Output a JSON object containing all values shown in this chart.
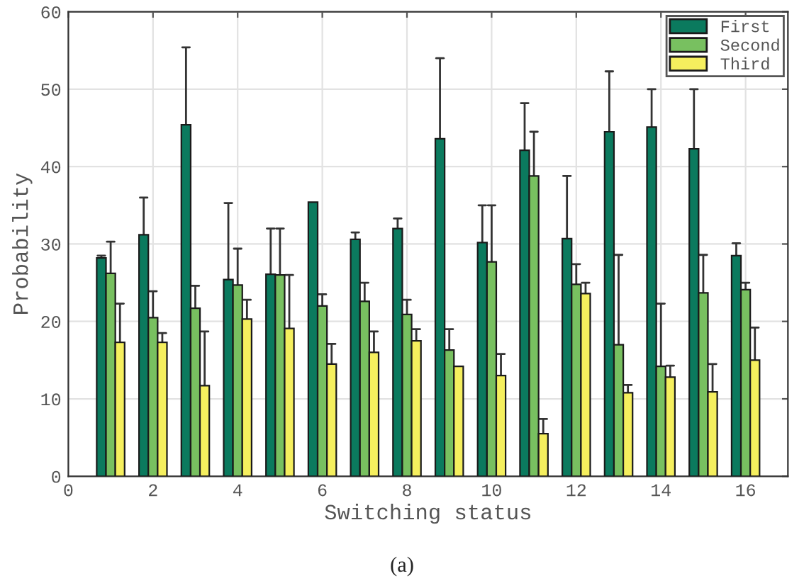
{
  "chart_data": {
    "type": "bar",
    "xlabel": "Switching status",
    "ylabel": "Probability",
    "annotations": [
      "(a)"
    ],
    "x": [
      1,
      2,
      3,
      4,
      5,
      6,
      7,
      8,
      9,
      10,
      11,
      12,
      13,
      14,
      15,
      16
    ],
    "xlim": [
      0,
      17
    ],
    "xticks": [
      0,
      2,
      4,
      6,
      8,
      10,
      12,
      14,
      16
    ],
    "ylim": [
      0,
      60
    ],
    "yticks": [
      0,
      10,
      20,
      30,
      40,
      50,
      60
    ],
    "grid": true,
    "legend": "top right",
    "series": [
      {
        "name": "First",
        "color": "#0b7a5e",
        "values": [
          28.2,
          31.2,
          45.4,
          25.4,
          26.1,
          35.4,
          30.6,
          32,
          43.6,
          30.2,
          42.1,
          30.7,
          44.5,
          45.1,
          42.3,
          28.5
        ],
        "errors": [
          [
            28.2,
            28.5
          ],
          [
            31.2,
            36
          ],
          [
            45.4,
            55.4
          ],
          [
            25.4,
            35.3
          ],
          [
            26.1,
            32
          ],
          null,
          [
            30.6,
            31.5
          ],
          [
            32,
            33.3
          ],
          [
            43.6,
            54
          ],
          [
            30.2,
            35
          ],
          [
            42.1,
            48.2
          ],
          [
            30.7,
            38.8
          ],
          [
            44.5,
            52.3
          ],
          [
            45.1,
            50
          ],
          [
            42.3,
            50
          ],
          [
            28.5,
            30.1
          ]
        ]
      },
      {
        "name": "Second",
        "color": "#78c060",
        "values": [
          26.2,
          20.5,
          21.7,
          24.7,
          26,
          22,
          22.6,
          20.9,
          16.3,
          27.7,
          38.8,
          24.8,
          17,
          14.2,
          23.7,
          24.1
        ],
        "errors": [
          [
            26.2,
            30.3
          ],
          [
            20.5,
            23.9
          ],
          [
            21.7,
            24.6
          ],
          [
            24.7,
            29.4
          ],
          [
            26,
            32
          ],
          [
            22,
            23.5
          ],
          [
            22.6,
            25
          ],
          [
            20.9,
            22.8
          ],
          [
            16.3,
            19
          ],
          [
            27.7,
            35
          ],
          [
            38.8,
            44.5
          ],
          [
            24.8,
            27.4
          ],
          [
            17,
            28.6
          ],
          [
            14.2,
            22.3
          ],
          [
            23.7,
            28.6
          ],
          [
            24.1,
            25
          ]
        ]
      },
      {
        "name": "Third",
        "color": "#f5ef5e",
        "values": [
          17.3,
          17.3,
          11.7,
          20.3,
          19.1,
          14.5,
          16,
          17.5,
          14.2,
          13,
          5.5,
          23.6,
          10.8,
          12.8,
          10.9,
          15
        ],
        "errors": [
          [
            17.3,
            22.3
          ],
          [
            17.3,
            18.5
          ],
          [
            11.7,
            18.7
          ],
          [
            20.3,
            22.8
          ],
          [
            19.1,
            26
          ],
          [
            14.5,
            17.1
          ],
          [
            16,
            18.7
          ],
          [
            17.5,
            19
          ],
          null,
          [
            13,
            15.8
          ],
          [
            5.5,
            7.4
          ],
          [
            23.6,
            25
          ],
          [
            10.8,
            11.8
          ],
          [
            12.8,
            14.3
          ],
          [
            10.9,
            14.5
          ],
          [
            15,
            19.2
          ]
        ]
      }
    ]
  }
}
